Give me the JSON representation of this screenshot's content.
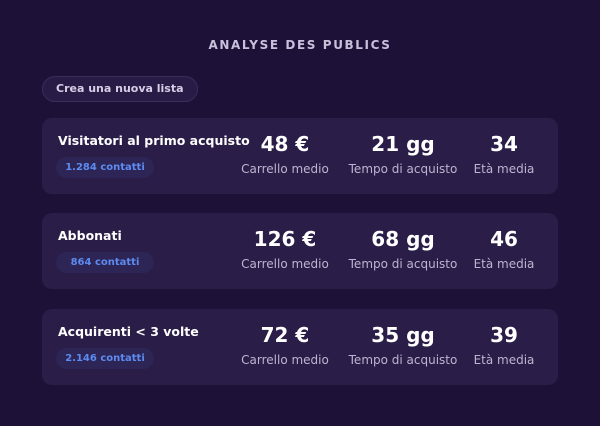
{
  "header": {
    "title": "ANALYSE DES PUBLICS"
  },
  "toolbar": {
    "new_list_label": "Crea una nuova lista"
  },
  "audiences": [
    {
      "name": "Visitatori al primo acquisto",
      "contacts": "1.284 contatti",
      "cart_value": "48 €",
      "cart_label": "Carrello medio",
      "time_value": "21 gg",
      "time_label": "Tempo di acquisto",
      "age_value": "34",
      "age_label": "Età media"
    },
    {
      "name": "Abbonati",
      "contacts": "864 contatti",
      "cart_value": "126 €",
      "cart_label": "Carrello medio",
      "time_value": "68 gg",
      "time_label": "Tempo di acquisto",
      "age_value": "46",
      "age_label": "Età media"
    },
    {
      "name": "Acquirenti < 3 volte",
      "contacts": "2.146 contatti",
      "cart_value": "72 €",
      "cart_label": "Carrello medio",
      "time_value": "35 gg",
      "time_label": "Tempo di acquisto",
      "age_value": "39",
      "age_label": "Età media"
    }
  ],
  "colors": {
    "background": "#1d1138",
    "card": "#2a1d48",
    "badge_text": "#5d8bf0",
    "badge_bg": "#2d2556"
  }
}
